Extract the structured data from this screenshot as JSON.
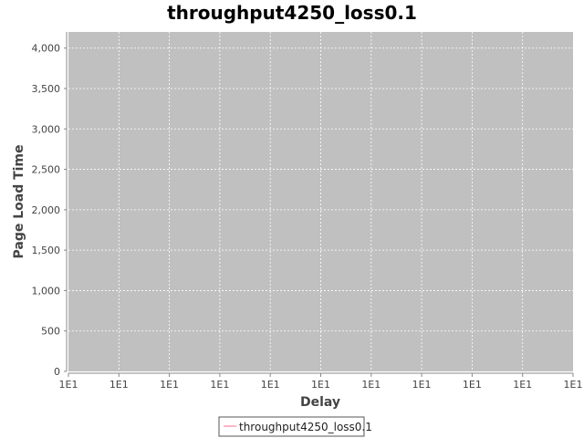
{
  "chart_data": {
    "type": "line",
    "title": "throughput4250_loss0.1",
    "xlabel": "Delay",
    "ylabel": "Page Load Time",
    "x_tick_labels": [
      "1E1",
      "1E1",
      "1E1",
      "1E1",
      "1E1",
      "1E1",
      "1E1",
      "1E1",
      "1E1",
      "1E1",
      "1E1"
    ],
    "y_ticks": [
      0,
      500,
      1000,
      1500,
      2000,
      2500,
      3000,
      3500,
      4000
    ],
    "y_tick_labels": [
      "0",
      "500",
      "1,000",
      "1,500",
      "2,000",
      "2,500",
      "3,000",
      "3,500",
      "4,000"
    ],
    "ylim": [
      0,
      4200
    ],
    "grid": true,
    "legend_position": "bottom",
    "series": [
      {
        "name": "throughput4250_loss0.1",
        "color": "#ff9eb5",
        "points": []
      }
    ],
    "plot_background": "#c0c0c0",
    "grid_color": "#ffffff"
  }
}
